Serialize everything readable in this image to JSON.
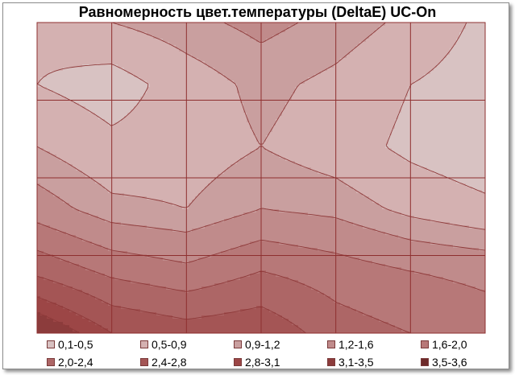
{
  "chart_data": {
    "type": "heatmap",
    "title": "Равномерность цвет.температуры (DeltaE) UC-On",
    "xlabel": "",
    "ylabel": "",
    "grid": true,
    "legend_position": "bottom",
    "legend": [
      {
        "label": "0,1-0,5",
        "color": "#d8c2c2"
      },
      {
        "label": "0,5-0,9",
        "color": "#d4b1b1"
      },
      {
        "label": "0,9-1,2",
        "color": "#c99f9f"
      },
      {
        "label": "1,2-1,6",
        "color": "#c08b8b"
      },
      {
        "label": "1,6-2,0",
        "color": "#b77878"
      },
      {
        "label": "2,0-2,4",
        "color": "#ad6666"
      },
      {
        "label": "2,4-2,8",
        "color": "#a45555"
      },
      {
        "label": "2,8-3,1",
        "color": "#9c4646"
      },
      {
        "label": "3,1-3,5",
        "color": "#8c3c3c"
      },
      {
        "label": "3,5-3,6",
        "color": "#6e2a2a"
      }
    ],
    "grid_values": [
      [
        0.6,
        0.9,
        1.1,
        1.3,
        1.1,
        0.8,
        0.4
      ],
      [
        0.5,
        0.3,
        0.7,
        1.0,
        0.8,
        0.5,
        0.3
      ],
      [
        0.9,
        0.6,
        0.7,
        0.9,
        0.7,
        0.4,
        0.2
      ],
      [
        1.4,
        1.0,
        0.9,
        1.2,
        1.1,
        0.8,
        0.6
      ],
      [
        2.3,
        1.9,
        1.7,
        2.0,
        1.8,
        1.6,
        1.5
      ],
      [
        3.5,
        2.8,
        2.6,
        2.7,
        2.2,
        2.0,
        1.8
      ]
    ]
  }
}
